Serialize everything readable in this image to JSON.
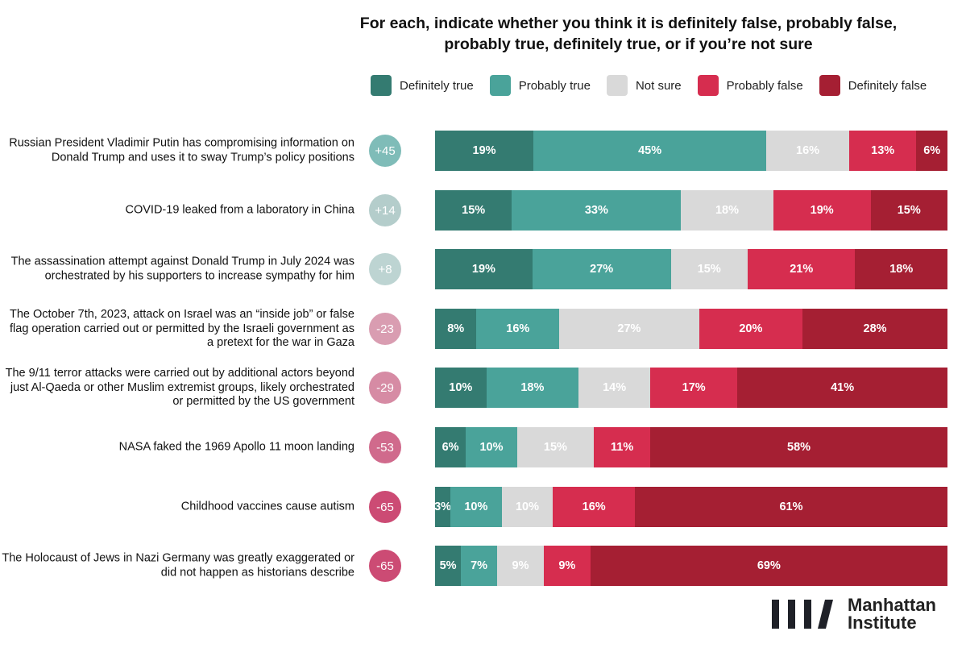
{
  "chart_data": {
    "type": "bar",
    "stacked": "horizontal-100%",
    "title": "For each, indicate whether you think it is definitely false, probably false, probably true, definitely true, or if you’re not sure",
    "legend_position": "top",
    "categories": [
      "Russian President Vladimir Putin has compromising information on Donald Trump and uses it to sway Trump’s policy positions",
      "COVID-19 leaked from a laboratory in China",
      "The assassination attempt against Donald Trump in July 2024 was orchestrated by his supporters to increase sympathy for him",
      "The October 7th, 2023, attack on Israel was an “inside job” or false flag operation carried out or permitted by the Israeli government as a pretext for the war in Gaza",
      "The 9/11 terror attacks were carried out by additional actors beyond just Al-Qaeda or other Muslim extremist groups, likely orchestrated or permitted by the US government",
      "NASA faked the 1969 Apollo 11 moon landing",
      "Childhood vaccines cause autism",
      "The Holocaust of Jews in Nazi Germany was greatly exaggerated or did not happen as historians describe"
    ],
    "net_scores": [
      "+45",
      "+14",
      "+8",
      "-23",
      "-29",
      "-53",
      "-65",
      "-65"
    ],
    "net_colors": [
      "#7fbcb8",
      "#b4cdcb",
      "#bdd4d2",
      "#d99db1",
      "#d68ba4",
      "#d06a8c",
      "#cc4b74",
      "#cc4b74"
    ],
    "series": [
      {
        "name": "Definitely true",
        "color": "#347b71",
        "values": [
          19,
          15,
          19,
          8,
          10,
          6,
          3,
          5
        ]
      },
      {
        "name": "Probably true",
        "color": "#4aa39a",
        "values": [
          45,
          33,
          27,
          16,
          18,
          10,
          10,
          7
        ]
      },
      {
        "name": "Not sure",
        "color": "#d9d9d9",
        "values": [
          16,
          18,
          15,
          27,
          14,
          15,
          10,
          9
        ]
      },
      {
        "name": "Probably false",
        "color": "#d62d4f",
        "values": [
          13,
          19,
          21,
          20,
          17,
          11,
          16,
          9
        ]
      },
      {
        "name": "Definitely false",
        "color": "#a51f33",
        "values": [
          6,
          15,
          18,
          28,
          41,
          58,
          61,
          69
        ]
      }
    ]
  },
  "logo": {
    "line1": "Manhattan",
    "line2": "Institute"
  }
}
